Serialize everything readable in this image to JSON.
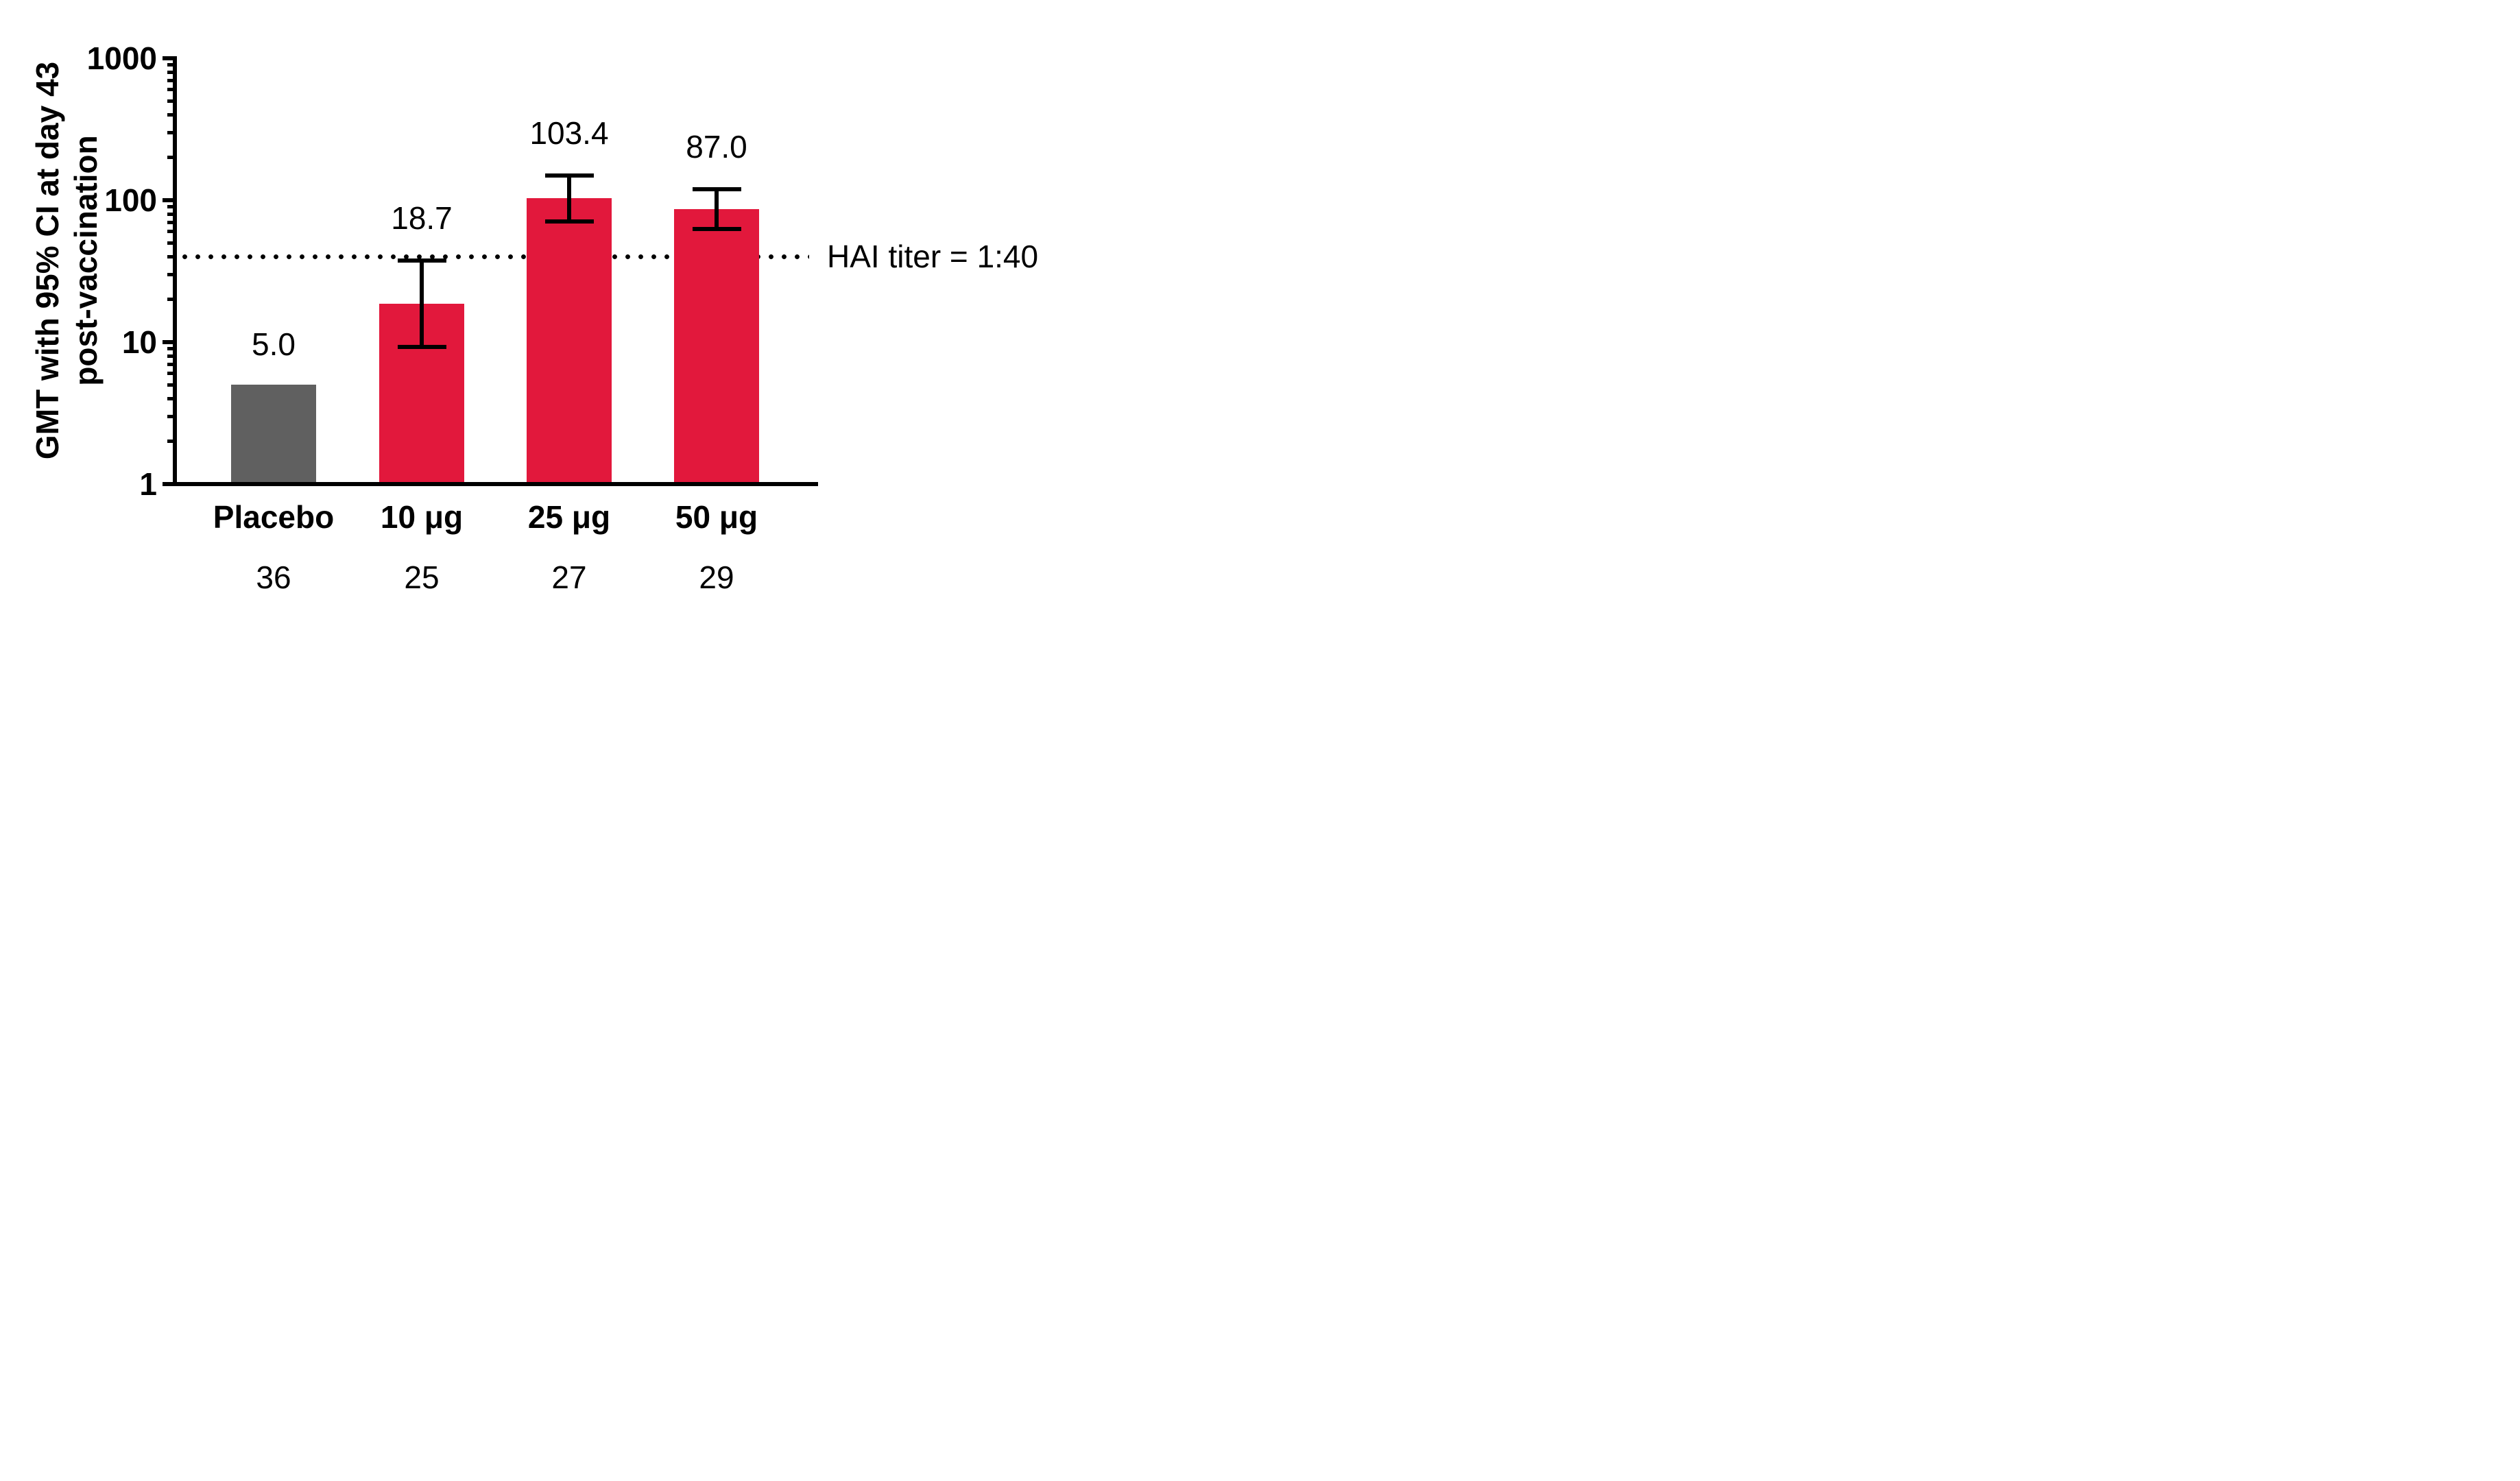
{
  "chart_data": {
    "type": "bar",
    "title": "",
    "ylabel_lines": [
      "GMT with 95% CI at day 43",
      "post-vaccination"
    ],
    "xlabel": "",
    "yscale": "log",
    "ylim": [
      1,
      1000
    ],
    "yticks": [
      1,
      10,
      100,
      1000
    ],
    "ytick_labels": [
      "1",
      "10",
      "100",
      "1000"
    ],
    "minor_tick_multiples": [
      2,
      3,
      4,
      5,
      6,
      7,
      8,
      9
    ],
    "grid": false,
    "legend": null,
    "categories": [
      "Placebo",
      "10 μg",
      "25 μg",
      "50 μg"
    ],
    "n_per_group": [
      "36",
      "25",
      "27",
      "29"
    ],
    "series": [
      {
        "name": "GMT at day 43",
        "values": [
          5.0,
          18.7,
          103.4,
          87.0
        ],
        "value_labels": [
          "5.0",
          "18.7",
          "103.4",
          "87.0"
        ],
        "ci_low": [
          null,
          9.3,
          71.0,
          63.0
        ],
        "ci_high": [
          null,
          37.5,
          150.0,
          120.0
        ],
        "bar_colors": [
          "#606060",
          "#e2183c",
          "#e2183c",
          "#e2183c"
        ]
      }
    ],
    "reference_line": {
      "value": 40,
      "label": "HAI titer = 1:40",
      "style": "dotted",
      "color": "#000000"
    }
  },
  "colors": {
    "bar_red": "#e2183c",
    "bar_gray": "#606060",
    "axis": "#000000",
    "background": "#ffffff"
  }
}
